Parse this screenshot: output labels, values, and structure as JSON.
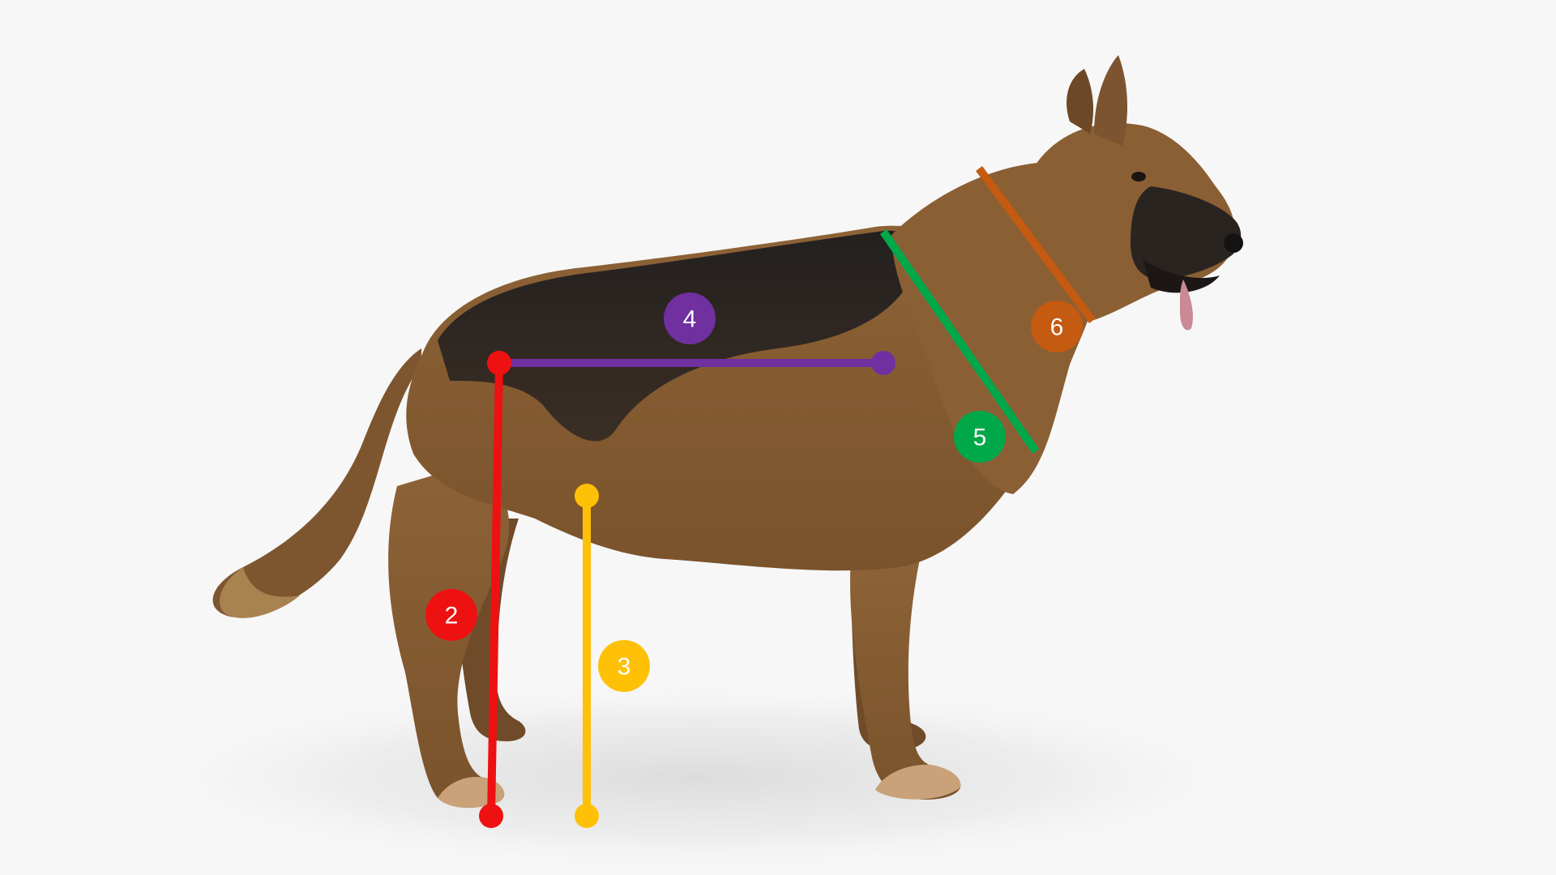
{
  "subject": {
    "name": "german-shepherd",
    "colors": {
      "tan": "#8a5f34",
      "tan_light": "#a87a48",
      "saddle": "#2b2622",
      "paw": "#c9a27a",
      "nose": "#1a1716",
      "tongue": "#c98a96",
      "shadow": "#e3e3e3",
      "background": "#f7f7f7"
    }
  },
  "measurements": [
    {
      "id": "leg-length",
      "label": "2",
      "color": "#ee1111"
    },
    {
      "id": "chest-height",
      "label": "3",
      "color": "#ffc107"
    },
    {
      "id": "back-length",
      "label": "4",
      "color": "#7030a0"
    },
    {
      "id": "chest-girth",
      "label": "5",
      "color": "#00a84a"
    },
    {
      "id": "neck-girth",
      "label": "6",
      "color": "#c55a11"
    }
  ]
}
